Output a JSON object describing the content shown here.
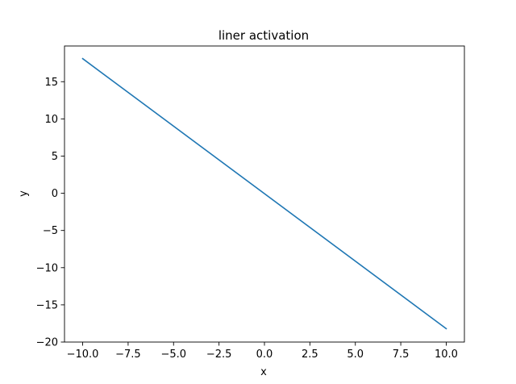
{
  "chart_data": {
    "type": "line",
    "title": "liner activation",
    "xlabel": "x",
    "ylabel": "y",
    "xlim": [
      -11.0,
      11.0
    ],
    "ylim": [
      -20.0,
      19.8
    ],
    "x_ticks": [
      -10.0,
      -7.5,
      -5.0,
      -2.5,
      0.0,
      2.5,
      5.0,
      7.5,
      10.0
    ],
    "x_tick_labels": [
      "−10.0",
      "−7.5",
      "−5.0",
      "−2.5",
      "0.0",
      "2.5",
      "5.0",
      "7.5",
      "10.0"
    ],
    "y_ticks": [
      -20,
      -15,
      -10,
      -5,
      0,
      5,
      10,
      15
    ],
    "y_tick_labels": [
      "−20",
      "−15",
      "−10",
      "−5",
      "0",
      "5",
      "10",
      "15"
    ],
    "grid": false,
    "series": [
      {
        "color": "#1f77b4",
        "x": [
          -10.0,
          10.0
        ],
        "y": [
          18.1,
          -18.2
        ]
      }
    ]
  }
}
